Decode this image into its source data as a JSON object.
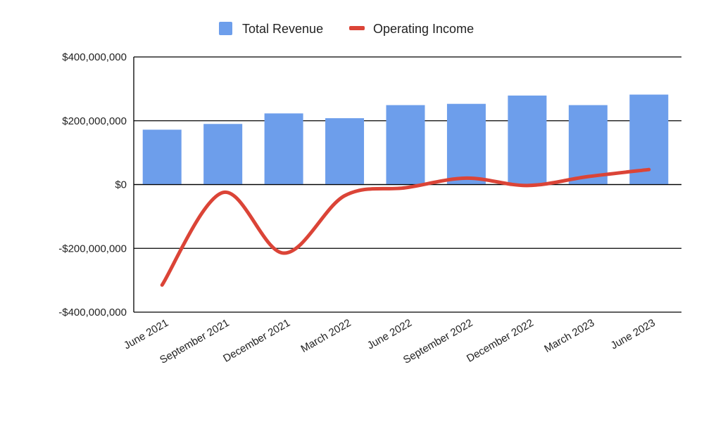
{
  "chart_data": {
    "type": "bar",
    "categories": [
      "June 2021",
      "September 2021",
      "December 2021",
      "March 2022",
      "June 2022",
      "September 2022",
      "December 2022",
      "March 2023",
      "June 2023"
    ],
    "series": [
      {
        "name": "Total Revenue",
        "type": "bar",
        "color": "#6d9eeb",
        "values": [
          172000000,
          190000000,
          223000000,
          208000000,
          249000000,
          253000000,
          279000000,
          249000000,
          282000000
        ]
      },
      {
        "name": "Operating Income",
        "type": "line",
        "color": "#db4437",
        "values": [
          -315000000,
          -25000000,
          -215000000,
          -35000000,
          -10000000,
          20000000,
          -3000000,
          25000000,
          47000000
        ]
      }
    ],
    "y_ticks": [
      "$400,000,000",
      "$200,000,000",
      "$0",
      "-$200,000,000",
      "-$400,000,000"
    ],
    "ylim": [
      -400000000,
      400000000
    ],
    "grid": true,
    "legend_position": "top-center",
    "title": "",
    "xlabel": "",
    "ylabel": ""
  }
}
